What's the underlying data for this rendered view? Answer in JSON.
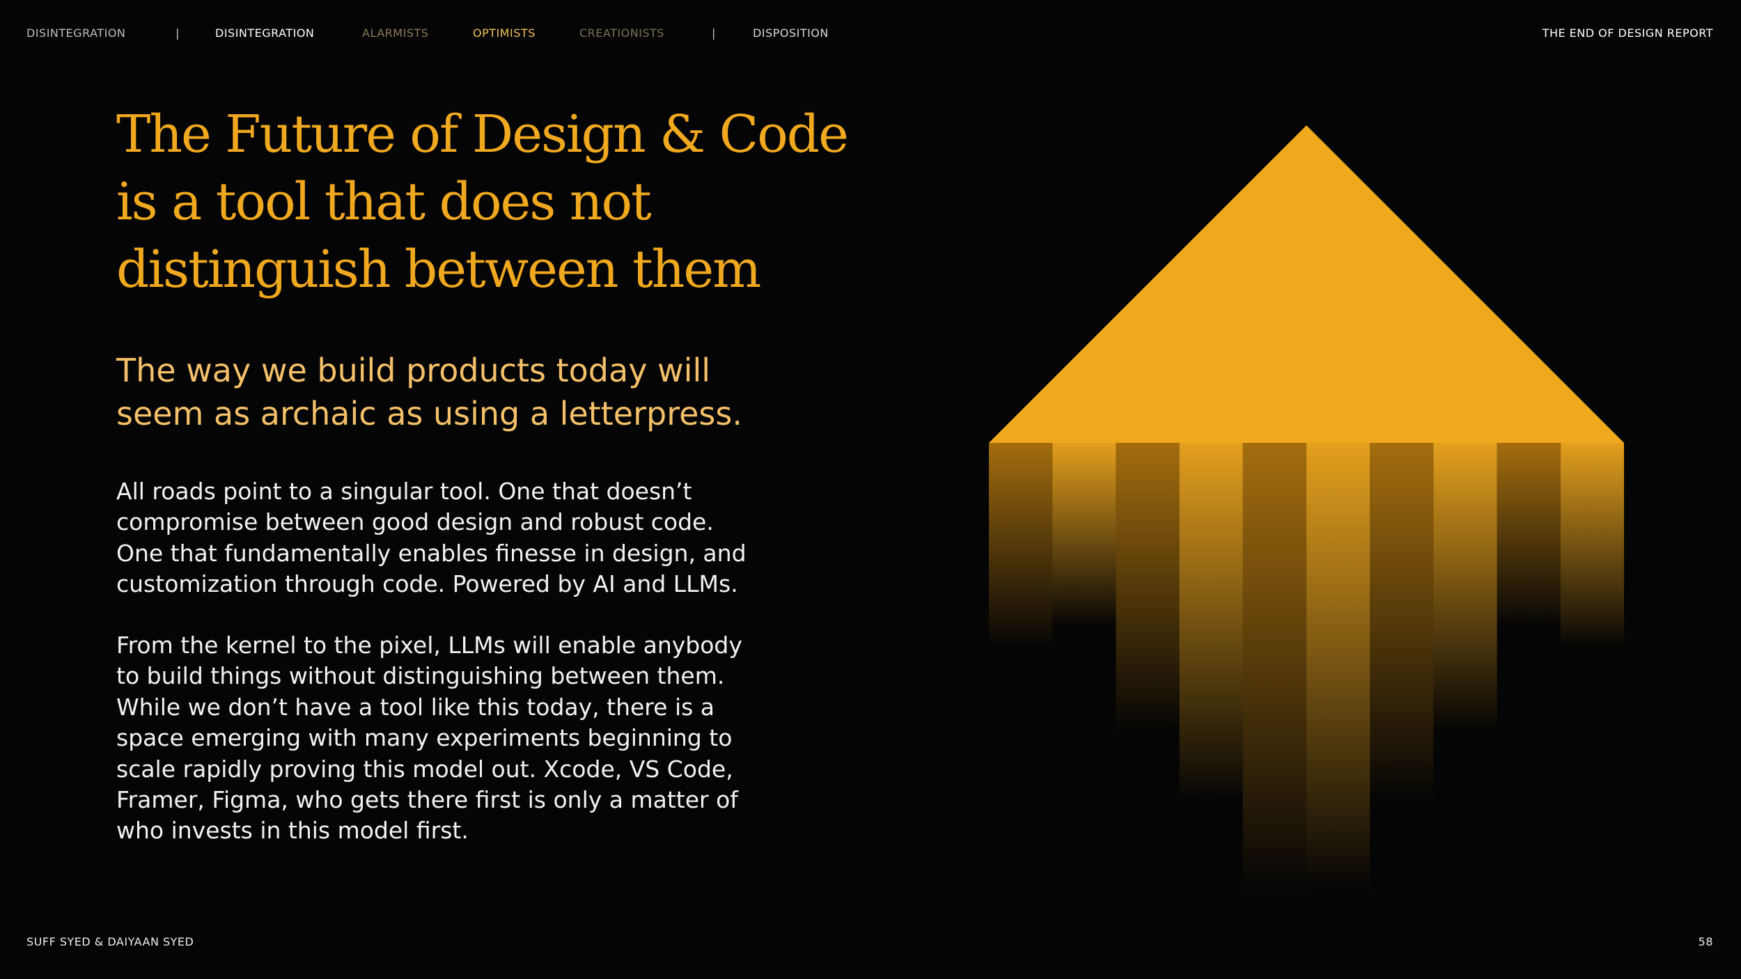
{
  "nav": {
    "items": [
      "DISINTEGRATION",
      "|",
      "DISINTEGRATION",
      "ALARMISTS",
      "OPTIMISTS",
      "CREATIONISTS",
      "|",
      "DISPOSITION"
    ],
    "report": "THE END OF DESIGN REPORT"
  },
  "content": {
    "title_lines": [
      "The Future of Design & Code",
      "is a tool that does not",
      "distinguish between them"
    ],
    "subtitle_lines": [
      "The way we build products today will",
      "seem as archaic as using a letterpress."
    ],
    "paragraphs": [
      [
        "All roads point to a singular tool. One that doesn’t",
        "compromise between good design and robust code.",
        "One that fundamentally enables finesse in design, and",
        "customization through code. Powered by AI and LLMs."
      ],
      [
        "From the kernel to the pixel, LLMs will enable anybody",
        "to build things without distinguishing between them.",
        "While we don’t have a tool like this today, there is a",
        "space emerging with many experiments beginning to",
        "scale rapidly proving this model out. Xcode, VS Code,",
        "Framer, Figma, who gets there first is only a matter of",
        "who invests in this model first."
      ]
    ]
  },
  "footer": {
    "authors": "SUFF SYED & DAIYAAN SYED",
    "page": "58"
  }
}
